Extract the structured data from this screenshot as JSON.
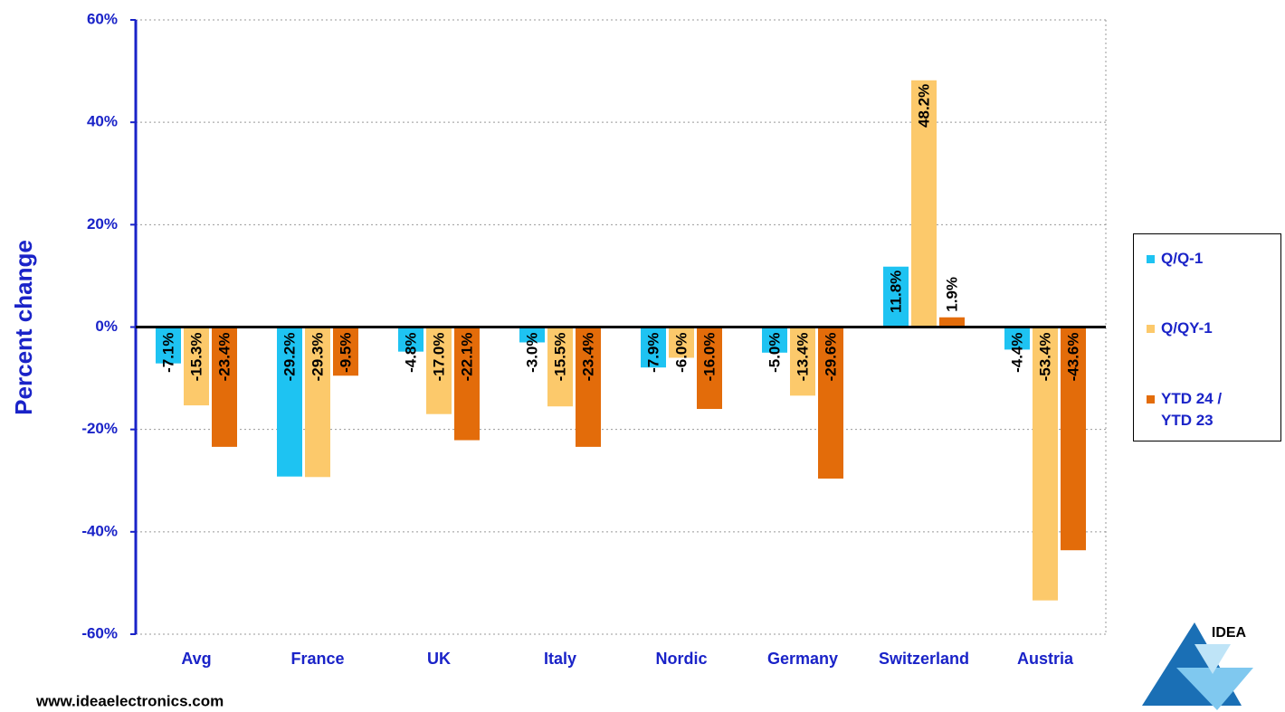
{
  "chart_data": {
    "type": "bar",
    "y_label": "Percent change",
    "categories": [
      "Avg",
      "France",
      "UK",
      "Italy",
      "Nordic",
      "Germany",
      "Switzerland",
      "Austria"
    ],
    "series": [
      {
        "name": "Q/Q-1",
        "color": "#1ec3f2",
        "values": [
          -7.1,
          -29.2,
          -4.8,
          -3.0,
          -7.9,
          -5.0,
          11.8,
          -4.4
        ],
        "value_labels": [
          "-7.1%",
          "-29.2%",
          "-4.8%",
          "-3.0%",
          "-7.9%",
          "-5.0%",
          "11.8%",
          "-4.4%"
        ]
      },
      {
        "name": "Q/QY-1",
        "color": "#fcc96b",
        "values": [
          -15.3,
          -29.3,
          -17.0,
          -15.5,
          -6.0,
          -13.4,
          48.2,
          -53.4
        ],
        "value_labels": [
          "-15.3%",
          "-29.3%",
          "-17.0%",
          "-15.5%",
          "-6.0%",
          "-13.4%",
          "48.2%",
          "-53.4%"
        ]
      },
      {
        "name": "YTD 24 / YTD 23",
        "color": "#e36c0a",
        "values": [
          -23.4,
          -9.5,
          -22.1,
          -23.4,
          -16.0,
          -29.6,
          1.9,
          -43.6
        ],
        "value_labels": [
          "-23.4%",
          "-9.5%",
          "-22.1%",
          "-23.4%",
          "-16.0%",
          "-29.6%",
          "1.9%",
          "-43.6%"
        ]
      }
    ],
    "ylim": [
      -60,
      60
    ],
    "yticks": [
      {
        "value": -60,
        "label": "-60%"
      },
      {
        "value": -40,
        "label": "-40%"
      },
      {
        "value": -20,
        "label": "-20%"
      },
      {
        "value": 0,
        "label": "0%"
      },
      {
        "value": 20,
        "label": "20%"
      },
      {
        "value": 40,
        "label": "40%"
      },
      {
        "value": 60,
        "label": "60%"
      }
    ],
    "grid": true,
    "legend": "right"
  },
  "footer": "www.ideaelectronics.com",
  "logo": "IDEA"
}
